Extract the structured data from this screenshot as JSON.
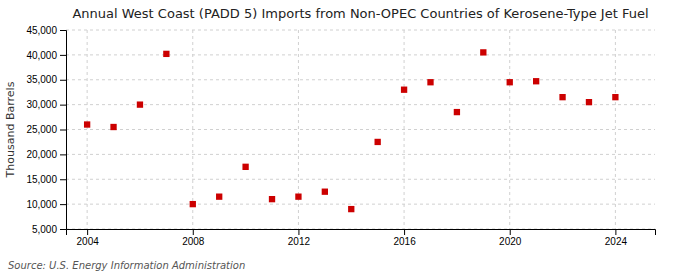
{
  "chart_data": {
    "type": "scatter",
    "title": "Annual West Coast (PADD 5) Imports from Non-OPEC Countries of Kerosene-Type Jet Fuel",
    "y_label": "Thousand Barrels",
    "annotations": [
      "Source: U.S. Energy Information Administration"
    ],
    "x": [
      2004,
      2005,
      2006,
      2007,
      2008,
      2009,
      2010,
      2011,
      2012,
      2013,
      2014,
      2015,
      2016,
      2017,
      2018,
      2019,
      2020,
      2021,
      2022,
      2023,
      2024
    ],
    "values": [
      26000,
      25500,
      30000,
      40200,
      10000,
      11500,
      17500,
      11000,
      11500,
      12500,
      9000,
      22500,
      33000,
      34500,
      28500,
      40500,
      34500,
      34700,
      31500,
      30500,
      31500
    ],
    "color": "#cc0000",
    "marker": "square",
    "xlim": [
      2003.2,
      2025.5
    ],
    "xticks": [
      2004,
      2008,
      2012,
      2016,
      2020,
      2024
    ],
    "ylim": [
      5000,
      45000
    ],
    "yticks": [
      {
        "value": 5000,
        "label": "5,000"
      },
      {
        "value": 10000,
        "label": "10,000"
      },
      {
        "value": 15000,
        "label": "15,000"
      },
      {
        "value": 20000,
        "label": "20,000"
      },
      {
        "value": 25000,
        "label": "25,000"
      },
      {
        "value": 30000,
        "label": "30,000"
      },
      {
        "value": 35000,
        "label": "35,000"
      },
      {
        "value": 40000,
        "label": "40,000"
      },
      {
        "value": 45000,
        "label": "45,000"
      }
    ],
    "grid": true
  }
}
